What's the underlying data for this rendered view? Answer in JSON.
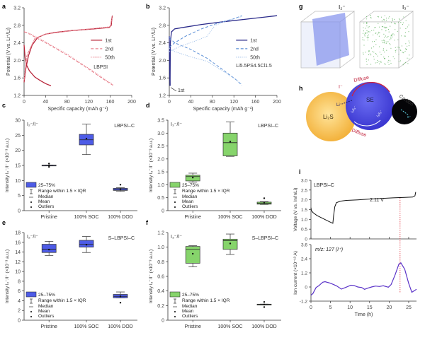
{
  "figure": {
    "panel_letters": [
      "a",
      "b",
      "c",
      "d",
      "e",
      "f",
      "g",
      "h",
      "i"
    ],
    "colors": {
      "red": "#b8253a",
      "red_light": "#e8838f",
      "blue": "#2a2a8a",
      "blue_dash": "#5b8fd6",
      "blue_dot": "#a9c6ea",
      "box_blue": "#4d5be6",
      "box_green": "#86d46b",
      "purple": "#5a32c8",
      "guide_red": "#e0303c"
    }
  },
  "chart_data": [
    {
      "id": "a",
      "type": "line",
      "xlabel": "Specific capacity (mAh g⁻¹)",
      "ylabel": "Potential (V vs. Li⁺/Li)",
      "xlim": [
        0,
        200
      ],
      "ylim": [
        1.2,
        3.2
      ],
      "xticks": [
        0,
        40,
        80,
        120,
        160,
        200
      ],
      "yticks": [
        1.2,
        1.6,
        2.0,
        2.4,
        2.8,
        3.2
      ],
      "annotation": "LBPSI",
      "legend": [
        "1st",
        "2nd",
        "50th"
      ],
      "series": [
        {
          "name": "1st discharge",
          "style": "solid",
          "color": "red",
          "points": [
            [
              0,
              2.35
            ],
            [
              2,
              2.05
            ],
            [
              5,
              1.88
            ],
            [
              10,
              1.76
            ],
            [
              20,
              1.62
            ],
            [
              30,
              1.54
            ],
            [
              40,
              1.47
            ],
            [
              50,
              1.42
            ]
          ]
        },
        {
          "name": "1st charge",
          "style": "solid",
          "color": "red",
          "points": [
            [
              0,
              1.5
            ],
            [
              3,
              1.8
            ],
            [
              8,
              2.1
            ],
            [
              15,
              2.35
            ],
            [
              25,
              2.52
            ],
            [
              40,
              2.6
            ],
            [
              60,
              2.64
            ],
            [
              90,
              2.68
            ],
            [
              130,
              2.72
            ],
            [
              158,
              2.75
            ],
            [
              162,
              2.8
            ],
            [
              163,
              2.95
            ],
            [
              164,
              3.02
            ]
          ]
        },
        {
          "name": "2nd discharge",
          "style": "dashed",
          "color": "red_light",
          "points": [
            [
              0,
              2.65
            ],
            [
              10,
              2.6
            ],
            [
              40,
              2.4
            ],
            [
              80,
              2.12
            ],
            [
              120,
              1.8
            ],
            [
              150,
              1.55
            ],
            [
              165,
              1.43
            ]
          ]
        },
        {
          "name": "2nd charge",
          "style": "dashed",
          "color": "red_light",
          "points": [
            [
              0,
              1.55
            ],
            [
              5,
              2.1
            ],
            [
              20,
              2.5
            ],
            [
              40,
              2.6
            ],
            [
              90,
              2.68
            ],
            [
              160,
              2.76
            ],
            [
              163,
              2.98
            ]
          ]
        },
        {
          "name": "50th discharge",
          "style": "dotted",
          "color": "red_light",
          "points": [
            [
              0,
              2.66
            ],
            [
              10,
              2.62
            ],
            [
              40,
              2.42
            ],
            [
              80,
              2.14
            ],
            [
              120,
              1.82
            ],
            [
              150,
              1.57
            ],
            [
              165,
              1.45
            ]
          ]
        },
        {
          "name": "50th charge",
          "style": "dotted",
          "color": "red_light",
          "points": [
            [
              0,
              1.6
            ],
            [
              6,
              2.15
            ],
            [
              20,
              2.5
            ],
            [
              40,
              2.6
            ],
            [
              90,
              2.68
            ],
            [
              160,
              2.77
            ],
            [
              164,
              3.0
            ]
          ]
        }
      ]
    },
    {
      "id": "b",
      "type": "line",
      "xlabel": "Specific capacity (mAh g⁻¹)",
      "ylabel": "Potential (V vs. Li⁺/Li)",
      "xlim": [
        0,
        200
      ],
      "ylim": [
        1.2,
        3.2
      ],
      "xticks": [
        0,
        40,
        80,
        120,
        160,
        200
      ],
      "yticks": [
        1.2,
        1.6,
        2.0,
        2.4,
        2.8,
        3.2
      ],
      "annotation": "Li5.5PS4.5Cl1.5",
      "arrow_label": "1st",
      "legend": [
        "1st",
        "2nd",
        "50th"
      ],
      "series": [
        {
          "name": "1st discharge",
          "style": "solid",
          "color": "blue",
          "points": [
            [
              0,
              2.55
            ],
            [
              0.5,
              2.0
            ],
            [
              1,
              1.6
            ],
            [
              1.5,
              1.42
            ]
          ]
        },
        {
          "name": "1st charge",
          "style": "solid",
          "color": "blue",
          "points": [
            [
              1.5,
              1.42
            ],
            [
              2,
              2.4
            ],
            [
              4,
              2.65
            ],
            [
              10,
              2.72
            ],
            [
              30,
              2.76
            ],
            [
              60,
              2.82
            ],
            [
              100,
              2.88
            ],
            [
              150,
              2.95
            ],
            [
              200,
              3.02
            ]
          ]
        },
        {
          "name": "2nd discharge",
          "style": "dashed",
          "color": "blue_dash",
          "points": [
            [
              0,
              2.52
            ],
            [
              10,
              2.4
            ],
            [
              40,
              2.25
            ],
            [
              70,
              2.05
            ],
            [
              100,
              1.78
            ],
            [
              125,
              1.55
            ],
            [
              135,
              1.43
            ]
          ]
        },
        {
          "name": "2nd charge",
          "style": "dashed",
          "color": "blue_dash",
          "points": [
            [
              0,
              2.3
            ],
            [
              10,
              2.4
            ],
            [
              30,
              2.55
            ],
            [
              60,
              2.72
            ],
            [
              90,
              2.85
            ],
            [
              120,
              2.95
            ],
            [
              135,
              3.02
            ]
          ]
        },
        {
          "name": "50th discharge",
          "style": "dotted",
          "color": "blue_dot",
          "points": [
            [
              0,
              2.28
            ],
            [
              10,
              2.2
            ],
            [
              40,
              2.08
            ],
            [
              70,
              1.98
            ],
            [
              100,
              1.75
            ],
            [
              125,
              1.55
            ],
            [
              135,
              1.45
            ]
          ]
        },
        {
          "name": "50th charge",
          "style": "dotted",
          "color": "blue_dot",
          "points": [
            [
              0,
              2.2
            ],
            [
              20,
              2.32
            ],
            [
              50,
              2.45
            ],
            [
              70,
              2.55
            ],
            [
              85,
              2.8
            ],
            [
              110,
              2.92
            ],
            [
              135,
              3.0
            ]
          ]
        }
      ]
    },
    {
      "id": "c",
      "type": "box",
      "ylabel": "Intensity I₂⁻/I⁻ (×10⁻³ a.u.)",
      "ratio_label": "I₂⁻/I⁻",
      "annotation": "LBPSI–C",
      "ylim": [
        0,
        30
      ],
      "yticks": [
        0,
        5,
        10,
        15,
        20,
        25,
        30
      ],
      "categories": [
        "Pristine",
        "100% SOC",
        "100% DOD"
      ],
      "color": "box_blue",
      "boxes": [
        {
          "q1": 14.9,
          "q3": 15.1,
          "median": 15.0,
          "mean": 15.0,
          "whisker_low": 14.9,
          "whisker_high": 15.1,
          "outliers": [
            15.6,
            14.5
          ]
        },
        {
          "q1": 21.8,
          "q3": 25.3,
          "median": 23.5,
          "mean": 23.9,
          "whisker_low": 18.6,
          "whisker_high": 28.7,
          "outliers": []
        },
        {
          "q1": 6.7,
          "q3": 7.4,
          "median": 7.0,
          "mean": 7.1,
          "whisker_low": 6.4,
          "whisker_high": 7.6,
          "outliers": [
            8.6
          ]
        }
      ],
      "legend": [
        "25–75%",
        "Range within 1.5 × IQR",
        "Median",
        "Mean",
        "Outliers"
      ]
    },
    {
      "id": "d",
      "type": "box",
      "ylabel": "Intensity I₃⁻/I⁻ (×10⁻³ a.u.)",
      "ratio_label": "I₃⁻/I⁻",
      "annotation": "LBPSI–C",
      "ylim": [
        0,
        3.5
      ],
      "yticks": [
        0,
        0.5,
        1.0,
        1.5,
        2.0,
        2.5,
        3.0,
        3.5
      ],
      "categories": [
        "Pristine",
        "100% SOC",
        "100% DOD"
      ],
      "color": "box_green",
      "boxes": [
        {
          "q1": 1.15,
          "q3": 1.37,
          "median": 1.32,
          "mean": 1.28,
          "whisker_low": 1.1,
          "whisker_high": 1.45,
          "outliers": []
        },
        {
          "q1": 2.12,
          "q3": 3.0,
          "median": 2.63,
          "mean": 2.67,
          "whisker_low": 2.1,
          "whisker_high": 3.43,
          "outliers": []
        },
        {
          "q1": 0.25,
          "q3": 0.33,
          "median": 0.29,
          "mean": 0.3,
          "whisker_low": 0.24,
          "whisker_high": 0.35,
          "outliers": [
            0.48
          ]
        }
      ],
      "legend": [
        "25–75%",
        "Range within 1.5 × IQR",
        "Median",
        "Mean",
        "Outliers"
      ]
    },
    {
      "id": "e",
      "type": "box",
      "ylabel": "Intensity I₂⁻/I⁻ (×10⁻³ a.u.)",
      "ratio_label": "I₂⁻/I⁻",
      "annotation": "S–LBPSI–C",
      "ylim": [
        0,
        18
      ],
      "yticks": [
        0,
        2,
        4,
        6,
        8,
        10,
        12,
        14,
        16,
        18
      ],
      "categories": [
        "Pristine",
        "100% SOC",
        "100% DOD"
      ],
      "color": "box_blue",
      "boxes": [
        {
          "q1": 13.9,
          "q3": 15.6,
          "median": 14.6,
          "mean": 14.5,
          "whisker_low": 13.3,
          "whisker_high": 16.2,
          "outliers": []
        },
        {
          "q1": 15.0,
          "q3": 16.4,
          "median": 15.6,
          "mean": 15.5,
          "whisker_low": 13.9,
          "whisker_high": 17.2,
          "outliers": []
        },
        {
          "q1": 4.6,
          "q3": 5.3,
          "median": 4.9,
          "mean": 4.9,
          "whisker_low": 4.6,
          "whisker_high": 5.8,
          "outliers": [
            3.6
          ]
        }
      ],
      "legend": [
        "25–75%",
        "Range within 1.5 × IQR",
        "Median",
        "Mean",
        "Outliers"
      ]
    },
    {
      "id": "f",
      "type": "box",
      "ylabel": "Intensity I₃⁻/I⁻ (×10⁻³ a.u.)",
      "ratio_label": "I₃⁻/I⁻",
      "annotation": "S–LBPSI–C",
      "ylim": [
        0,
        1.2
      ],
      "yticks": [
        0,
        0.2,
        0.4,
        0.6,
        0.8,
        1.0,
        1.2
      ],
      "categories": [
        "Pristine",
        "100% SOC",
        "100% DOD"
      ],
      "color": "box_green",
      "boxes": [
        {
          "q1": 0.78,
          "q3": 1.01,
          "median": 0.97,
          "mean": 0.91,
          "whisker_low": 0.73,
          "whisker_high": 1.02,
          "outliers": []
        },
        {
          "q1": 0.97,
          "q3": 1.11,
          "median": 1.09,
          "mean": 1.05,
          "whisker_low": 0.9,
          "whisker_high": 1.18,
          "outliers": []
        },
        {
          "q1": 0.21,
          "q3": 0.22,
          "median": 0.215,
          "mean": 0.215,
          "whisker_low": 0.21,
          "whisker_high": 0.22,
          "outliers": [
            0.25,
            0.18
          ]
        }
      ],
      "legend": [
        "25–75%",
        "Range within 1.5 × IQR",
        "Median",
        "Mean",
        "Outliers"
      ]
    },
    {
      "id": "i-top",
      "type": "line",
      "ylabel": "Voltage (V vs. In/InLi)",
      "annotation": "LBPSI–C",
      "value_label": "2.11 V",
      "xlim": [
        0,
        27
      ],
      "ylim": [
        0,
        3.0
      ],
      "yticks": [
        0,
        0.5,
        1.0,
        1.5,
        2.0,
        2.5,
        3.0
      ],
      "guide_x": 22.8,
      "series": [
        {
          "name": "Voltage",
          "points": [
            [
              0,
              1.6
            ],
            [
              0.1,
              1.45
            ],
            [
              0.5,
              1.35
            ],
            [
              1.5,
              1.2
            ],
            [
              3,
              1.05
            ],
            [
              4.5,
              0.9
            ],
            [
              5.6,
              0.8
            ],
            [
              5.8,
              1.2
            ],
            [
              6.1,
              1.65
            ],
            [
              6.5,
              1.85
            ],
            [
              7.5,
              1.93
            ],
            [
              9,
              1.97
            ],
            [
              12,
              2.0
            ],
            [
              15,
              2.04
            ],
            [
              18,
              2.07
            ],
            [
              21,
              2.1
            ],
            [
              24,
              2.12
            ],
            [
              26,
              2.14
            ],
            [
              26.6,
              2.2
            ],
            [
              26.8,
              2.4
            ]
          ]
        }
      ]
    },
    {
      "id": "i-bottom",
      "type": "line",
      "ylabel": "Ion current (×10⁻¹³ A)",
      "xlabel": "Time (h)",
      "annotation": "m/z: 127 (I⁺)",
      "xlim": [
        0,
        27
      ],
      "ylim": [
        -1.2,
        3.6
      ],
      "xticks": [
        0,
        5,
        10,
        15,
        20,
        25
      ],
      "yticks": [
        -1.2,
        0,
        1.2,
        2.4,
        3.6
      ],
      "guide_x": 22.8,
      "series": [
        {
          "name": "Ion current",
          "points": [
            [
              0,
              -0.7
            ],
            [
              0.5,
              -0.55
            ],
            [
              1.3,
              -0.05
            ],
            [
              2,
              0.1
            ],
            [
              3,
              0.4
            ],
            [
              3.6,
              0.45
            ],
            [
              5,
              0.32
            ],
            [
              6.5,
              0.1
            ],
            [
              7.8,
              -0.18
            ],
            [
              9,
              -0.02
            ],
            [
              10.2,
              0.15
            ],
            [
              11,
              0.13
            ],
            [
              12,
              0.0
            ],
            [
              13,
              -0.05
            ],
            [
              13.7,
              -0.2
            ],
            [
              14.5,
              -0.1
            ],
            [
              15.5,
              0.0
            ],
            [
              16.5,
              0.08
            ],
            [
              17.5,
              0.04
            ],
            [
              18.5,
              0.1
            ],
            [
              19.8,
              -0.02
            ],
            [
              20.5,
              0.2
            ],
            [
              21.5,
              1.0
            ],
            [
              22.5,
              1.95
            ],
            [
              23,
              2.05
            ],
            [
              24,
              1.5
            ],
            [
              25,
              0.3
            ],
            [
              25.8,
              -0.45
            ],
            [
              26.3,
              -0.35
            ],
            [
              27,
              -0.2
            ]
          ]
        }
      ]
    }
  ],
  "panel_g": {
    "left_label": "I₂⁻",
    "right_label": "I₃⁻"
  },
  "panel_h": {
    "li2s_label": "Li₂S",
    "se_label": "SE",
    "carbon_label": "Carbon",
    "diffuse_top": "Diffuse",
    "diffuse_bottom": "Diffuse",
    "iodide_label": "I⁻",
    "li_label": "Li⁺",
    "i2_label": "I₂/I₃⁻",
    "i3_label": "I₃/I₃⁻",
    "electron_label": "e⁻"
  }
}
